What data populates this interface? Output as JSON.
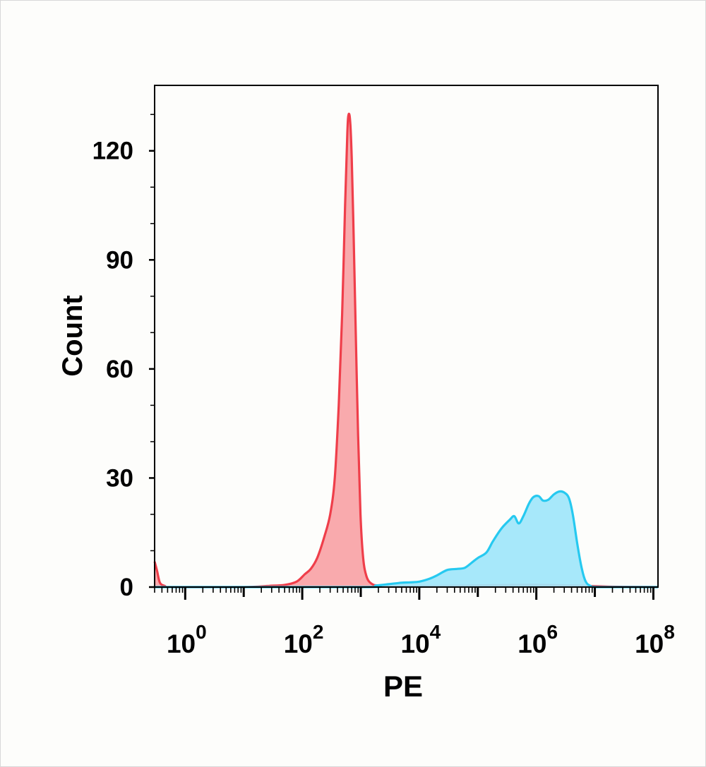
{
  "chart_data": {
    "type": "area",
    "title": "",
    "xlabel": "PE",
    "ylabel": "Count",
    "xscale": "log",
    "xlim": [
      0.3,
      120000000
    ],
    "ylim": [
      0,
      138
    ],
    "grid": false,
    "legend": "none",
    "yticks": [
      {
        "value": 0,
        "label": "0"
      },
      {
        "value": 30,
        "label": "30"
      },
      {
        "value": 60,
        "label": "60"
      },
      {
        "value": 90,
        "label": "90"
      },
      {
        "value": 120,
        "label": "120"
      }
    ],
    "xticks": [
      {
        "value": 1,
        "base": "10",
        "exp": "0"
      },
      {
        "value": 100,
        "base": "10",
        "exp": "2"
      },
      {
        "value": 10000,
        "base": "10",
        "exp": "4"
      },
      {
        "value": 1000000,
        "base": "10",
        "exp": "6"
      },
      {
        "value": 100000000,
        "base": "10",
        "exp": "8"
      }
    ],
    "series": [
      {
        "color": "#ef3e4a",
        "fill": "#f9a3a6",
        "points": [
          [
            0.3,
            7
          ],
          [
            0.33,
            4.5
          ],
          [
            0.37,
            1.2
          ],
          [
            0.45,
            0.3
          ],
          [
            0.6,
            0
          ],
          [
            10,
            0
          ],
          [
            25,
            0.3
          ],
          [
            50,
            0.6
          ],
          [
            80,
            1.5
          ],
          [
            110,
            3.5
          ],
          [
            140,
            5
          ],
          [
            180,
            8
          ],
          [
            240,
            14
          ],
          [
            300,
            20
          ],
          [
            360,
            30
          ],
          [
            420,
            50
          ],
          [
            480,
            75
          ],
          [
            540,
            105
          ],
          [
            590,
            125
          ],
          [
            620,
            130
          ],
          [
            660,
            128
          ],
          [
            700,
            118
          ],
          [
            760,
            95
          ],
          [
            820,
            70
          ],
          [
            900,
            42
          ],
          [
            990,
            20
          ],
          [
            1100,
            8
          ],
          [
            1250,
            3
          ],
          [
            1500,
            1
          ],
          [
            2000,
            0.4
          ],
          [
            4000,
            0.2
          ],
          [
            20000,
            0.3
          ],
          [
            200000,
            0.5
          ],
          [
            1000000,
            0.6
          ],
          [
            5000000,
            0.4
          ],
          [
            20000000,
            0.1
          ],
          [
            120000000,
            0
          ]
        ]
      },
      {
        "color": "#26c9f0",
        "fill": "#9fe6fa",
        "points": [
          [
            0.3,
            0
          ],
          [
            1000,
            0
          ],
          [
            1800,
            0.4
          ],
          [
            3000,
            0.8
          ],
          [
            5000,
            1.2
          ],
          [
            7000,
            1.3
          ],
          [
            10000,
            1.5
          ],
          [
            15000,
            2.3
          ],
          [
            20000,
            3.2
          ],
          [
            30000,
            4.7
          ],
          [
            45000,
            5
          ],
          [
            60000,
            5.3
          ],
          [
            80000,
            6.8
          ],
          [
            100000,
            8
          ],
          [
            140000,
            9.5
          ],
          [
            180000,
            12.5
          ],
          [
            250000,
            16
          ],
          [
            350000,
            18.5
          ],
          [
            420000,
            19.5
          ],
          [
            500000,
            17.5
          ],
          [
            600000,
            19.5
          ],
          [
            750000,
            23
          ],
          [
            900000,
            24.8
          ],
          [
            1100000,
            25
          ],
          [
            1300000,
            23.8
          ],
          [
            1600000,
            24
          ],
          [
            2000000,
            25.5
          ],
          [
            2500000,
            26.3
          ],
          [
            3000000,
            26
          ],
          [
            3600000,
            24.5
          ],
          [
            4200000,
            20
          ],
          [
            5000000,
            12
          ],
          [
            6000000,
            5
          ],
          [
            7000000,
            1.5
          ],
          [
            8500000,
            0.3
          ],
          [
            12000000,
            0
          ],
          [
            120000000,
            0
          ]
        ]
      }
    ]
  }
}
